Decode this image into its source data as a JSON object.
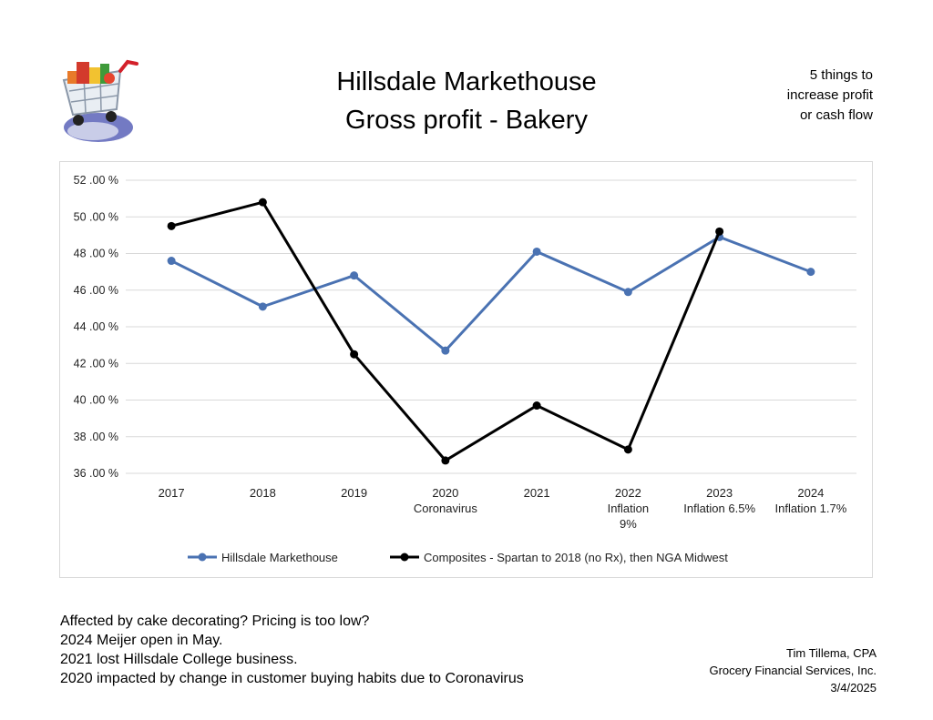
{
  "header": {
    "title_line1": "Hillsdale Markethouse",
    "title_line2": "Gross profit - Bakery",
    "side_note": [
      "5 things to",
      "increase profit",
      "or cash flow"
    ]
  },
  "logo": {
    "icon": "shopping-cart-icon"
  },
  "chart_data": {
    "type": "line",
    "categories": [
      [
        "2017"
      ],
      [
        "2018"
      ],
      [
        "2019"
      ],
      [
        "2020",
        "Coronavirus"
      ],
      [
        "2021"
      ],
      [
        "2022",
        "Inflation",
        "9%"
      ],
      [
        "2023",
        "Inflation 6.5%"
      ],
      [
        "2024",
        "Inflation 1.7%"
      ]
    ],
    "ylim": [
      36,
      52
    ],
    "yticks": [
      "36 .00 %",
      "38 .00 %",
      "40 .00 %",
      "42 .00 %",
      "44 .00 %",
      "46 .00 %",
      "48 .00 %",
      "50 .00 %",
      "52 .00 %"
    ],
    "grid": true,
    "legend_position": "bottom",
    "series": [
      {
        "name": "Hillsdale Markethouse",
        "color": "#4a72b2",
        "values": [
          47.6,
          45.1,
          46.8,
          42.7,
          48.1,
          45.9,
          48.9,
          47.0
        ]
      },
      {
        "name": "Composites - Spartan to 2018 (no Rx), then NGA Midwest",
        "color": "#000000",
        "values": [
          49.5,
          50.8,
          42.5,
          36.7,
          39.7,
          37.3,
          49.2,
          null
        ]
      }
    ]
  },
  "comments": [
    "Affected by cake decorating? Pricing is too low?",
    "2024 Meijer open in May.",
    "2021 lost Hillsdale College business.",
    "2020 impacted by change in customer buying habits due to Coronavirus"
  ],
  "author": {
    "name": "Tim Tillema, CPA",
    "company": "Grocery Financial Services, Inc.",
    "date": "3/4/2025"
  }
}
